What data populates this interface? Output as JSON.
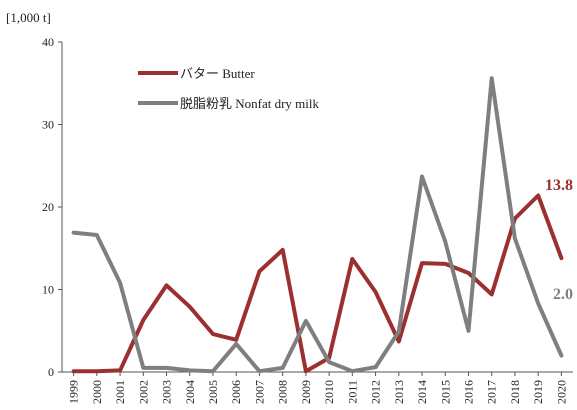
{
  "chart_data": {
    "type": "line",
    "unit_label": "[1,000 t]",
    "x": [
      "1999",
      "2000",
      "2001",
      "2002",
      "2003",
      "2004",
      "2005",
      "2006",
      "2007",
      "2008",
      "2009",
      "2010",
      "2011",
      "2012",
      "2013",
      "2014",
      "2015",
      "2016",
      "2017",
      "2018",
      "2019",
      "2020"
    ],
    "ylim": [
      0,
      40
    ],
    "yticks": [
      0,
      10,
      20,
      30,
      40
    ],
    "grid": false,
    "legend_position": "top-left",
    "series": [
      {
        "name": "バター Butter",
        "color": "#9c2f2f",
        "values": [
          0.1,
          0.1,
          0.2,
          6.3,
          10.5,
          7.9,
          4.6,
          3.9,
          12.2,
          14.8,
          0.1,
          1.7,
          13.7,
          9.7,
          3.7,
          13.2,
          13.1,
          12.0,
          9.4,
          18.6,
          21.4,
          13.8
        ],
        "end_label": "13.8"
      },
      {
        "name": "脱脂粉乳 Nonfat dry milk",
        "color": "#7f7f7f",
        "values": [
          16.9,
          16.6,
          10.8,
          0.5,
          0.5,
          0.2,
          0.1,
          3.4,
          0.1,
          0.5,
          6.2,
          1.2,
          0.1,
          0.6,
          4.9,
          23.7,
          15.8,
          5.0,
          35.6,
          16.2,
          8.3,
          2.0
        ],
        "end_label": "2.0"
      }
    ]
  }
}
